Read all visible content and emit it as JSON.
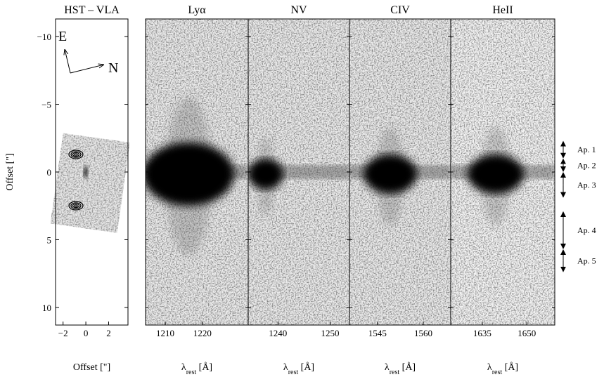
{
  "figure": {
    "ylim": [
      -11.3,
      11.3
    ],
    "left_panel": {
      "title": "HST – VLA",
      "ylabel": "Offset [\"]",
      "xlabel": "Offset [\"]",
      "xlim": [
        -2.66,
        3.7
      ],
      "xticks": [
        {
          "value": -2,
          "label": "−2"
        },
        0,
        2
      ],
      "yticks": [
        {
          "value": -10,
          "label": "−10"
        },
        {
          "value": -5,
          "label": "−5"
        },
        0,
        5,
        10
      ],
      "compass": {
        "east": "E",
        "north": "N"
      }
    },
    "spectra": [
      {
        "title": "Lyα",
        "xlim": [
          1204.7,
          1232.3
        ],
        "xticks": [
          1210,
          1220
        ]
      },
      {
        "title": "NV",
        "xlim": [
          1234.3,
          1253.7
        ],
        "xticks": [
          1240,
          1250
        ]
      },
      {
        "title": "CIV",
        "xlim": [
          1535.8,
          1569
        ],
        "xticks": [
          1545,
          1560
        ]
      },
      {
        "title": "HeII",
        "xlim": [
          1624.4,
          1659.4
        ],
        "xticks": [
          1635,
          1650
        ]
      }
    ],
    "spectral_xlabel": {
      "symbol": "λ",
      "sub": "rest",
      "unit": " [Å]"
    },
    "apertures": [
      {
        "label": "Ap. 1",
        "range": [
          -2.3,
          -1.0
        ]
      },
      {
        "label": "Ap. 2",
        "range": [
          -1.0,
          0
        ]
      },
      {
        "label": "Ap. 3",
        "range": [
          0,
          1.9
        ]
      },
      {
        "label": "Ap. 4",
        "range": [
          2.9,
          5.7
        ]
      },
      {
        "label": "Ap. 5",
        "range": [
          5.7,
          7.4
        ]
      }
    ]
  }
}
